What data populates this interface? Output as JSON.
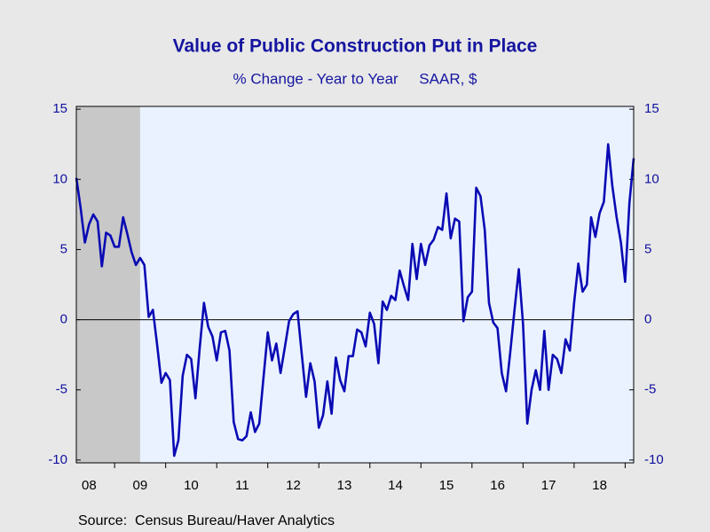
{
  "chart_data": {
    "type": "line",
    "title": "Value of Public Construction Put in Place",
    "subtitle": "% Change - Year to Year     SAAR, $",
    "source": "Source:  Census Bureau/Haver Analytics",
    "x": [
      2008.25,
      2008.333,
      2008.417,
      2008.5,
      2008.583,
      2008.667,
      2008.75,
      2008.833,
      2008.917,
      2009,
      2009.083,
      2009.167,
      2009.25,
      2009.333,
      2009.417,
      2009.5,
      2009.583,
      2009.667,
      2009.75,
      2009.833,
      2009.917,
      2010,
      2010.083,
      2010.167,
      2010.25,
      2010.333,
      2010.417,
      2010.5,
      2010.583,
      2010.667,
      2010.75,
      2010.833,
      2010.917,
      2011,
      2011.083,
      2011.167,
      2011.25,
      2011.333,
      2011.417,
      2011.5,
      2011.583,
      2011.667,
      2011.75,
      2011.833,
      2011.917,
      2012,
      2012.083,
      2012.167,
      2012.25,
      2012.333,
      2012.417,
      2012.5,
      2012.583,
      2012.667,
      2012.75,
      2012.833,
      2012.917,
      2013,
      2013.083,
      2013.167,
      2013.25,
      2013.333,
      2013.417,
      2013.5,
      2013.583,
      2013.667,
      2013.75,
      2013.833,
      2013.917,
      2014,
      2014.083,
      2014.167,
      2014.25,
      2014.333,
      2014.417,
      2014.5,
      2014.583,
      2014.667,
      2014.75,
      2014.833,
      2014.917,
      2015,
      2015.083,
      2015.167,
      2015.25,
      2015.333,
      2015.417,
      2015.5,
      2015.583,
      2015.667,
      2015.75,
      2015.833,
      2015.917,
      2016,
      2016.083,
      2016.167,
      2016.25,
      2016.333,
      2016.417,
      2016.5,
      2016.583,
      2016.667,
      2016.75,
      2016.833,
      2016.917,
      2017,
      2017.083,
      2017.167,
      2017.25,
      2017.333,
      2017.417,
      2017.5,
      2017.583,
      2017.667,
      2017.75,
      2017.833,
      2017.917,
      2018,
      2018.083,
      2018.167,
      2018.25,
      2018.333,
      2018.417,
      2018.5,
      2018.583,
      2018.667,
      2018.75,
      2018.833,
      2018.917,
      2019,
      2019.083,
      2019.167
    ],
    "series": [
      {
        "color": "#0a0ab4",
        "values": [
          10.1,
          8,
          5.5,
          6.8,
          7.5,
          7,
          3.8,
          6.2,
          6,
          5.2,
          5.2,
          7.3,
          6.1,
          4.8,
          3.9,
          4.4,
          3.9,
          0.2,
          0.7,
          -1.8,
          -4.5,
          -3.8,
          -4.3,
          -9.7,
          -8.6,
          -4,
          -2.5,
          -2.8,
          -5.6,
          -2,
          1.2,
          -0.5,
          -1.2,
          -2.9,
          -0.9,
          -0.8,
          -2.2,
          -7.3,
          -8.5,
          -8.6,
          -8.3,
          -6.6,
          -8,
          -7.4,
          -4.1,
          -0.9,
          -2.9,
          -1.7,
          -3.8,
          -2,
          -0.1,
          0.4,
          0.6,
          -2.5,
          -5.5,
          -3.1,
          -4.4,
          -7.7,
          -6.8,
          -4.4,
          -6.7,
          -2.7,
          -4.3,
          -5.1,
          -2.6,
          -2.6,
          -0.7,
          -0.9,
          -1.9,
          0.5,
          -0.3,
          -3.1,
          1.3,
          0.7,
          1.7,
          1.4,
          3.5,
          2.4,
          1.4,
          5.4,
          2.9,
          5.4,
          3.9,
          5.3,
          5.7,
          6.6,
          6.4,
          9,
          5.8,
          7.2,
          7,
          -0.1,
          1.6,
          2,
          9.4,
          8.8,
          6.4,
          1.2,
          -0.2,
          -0.6,
          -3.8,
          -5.1,
          -2.3,
          0.7,
          3.6,
          -0.3,
          -7.4,
          -5,
          -3.6,
          -5,
          -0.8,
          -5,
          -2.5,
          -2.8,
          -3.8,
          -1.4,
          -2.2,
          1.2,
          4,
          2,
          2.5,
          7.3,
          5.9,
          7.6,
          8.4,
          12.5,
          9.5,
          7.3,
          5.5,
          2.7,
          8.3,
          11.5
        ]
      }
    ],
    "xlim": [
      2008.25,
      2019.167
    ],
    "xticks": [
      {
        "value": 2008.5,
        "label": "08"
      },
      {
        "value": 2009.5,
        "label": "09"
      },
      {
        "value": 2010.5,
        "label": "10"
      },
      {
        "value": 2011.5,
        "label": "11"
      },
      {
        "value": 2012.5,
        "label": "12"
      },
      {
        "value": 2013.5,
        "label": "13"
      },
      {
        "value": 2014.5,
        "label": "14"
      },
      {
        "value": 2015.5,
        "label": "15"
      },
      {
        "value": 2016.5,
        "label": "16"
      },
      {
        "value": 2017.5,
        "label": "17"
      },
      {
        "value": 2018.5,
        "label": "18"
      }
    ],
    "ylim": [
      -10.2,
      15.2
    ],
    "yticks": [
      -10,
      -5,
      0,
      5,
      10,
      15
    ],
    "y2lim": [
      -10.2,
      15.2
    ],
    "y2ticks": [
      -10,
      -5,
      0,
      5,
      10,
      15
    ],
    "reference_line": 0,
    "shaded_ranges": [
      [
        2008.25,
        2009.5
      ]
    ],
    "shade_color": "#c8c8c8",
    "plot_background": "#eaf2ff"
  }
}
